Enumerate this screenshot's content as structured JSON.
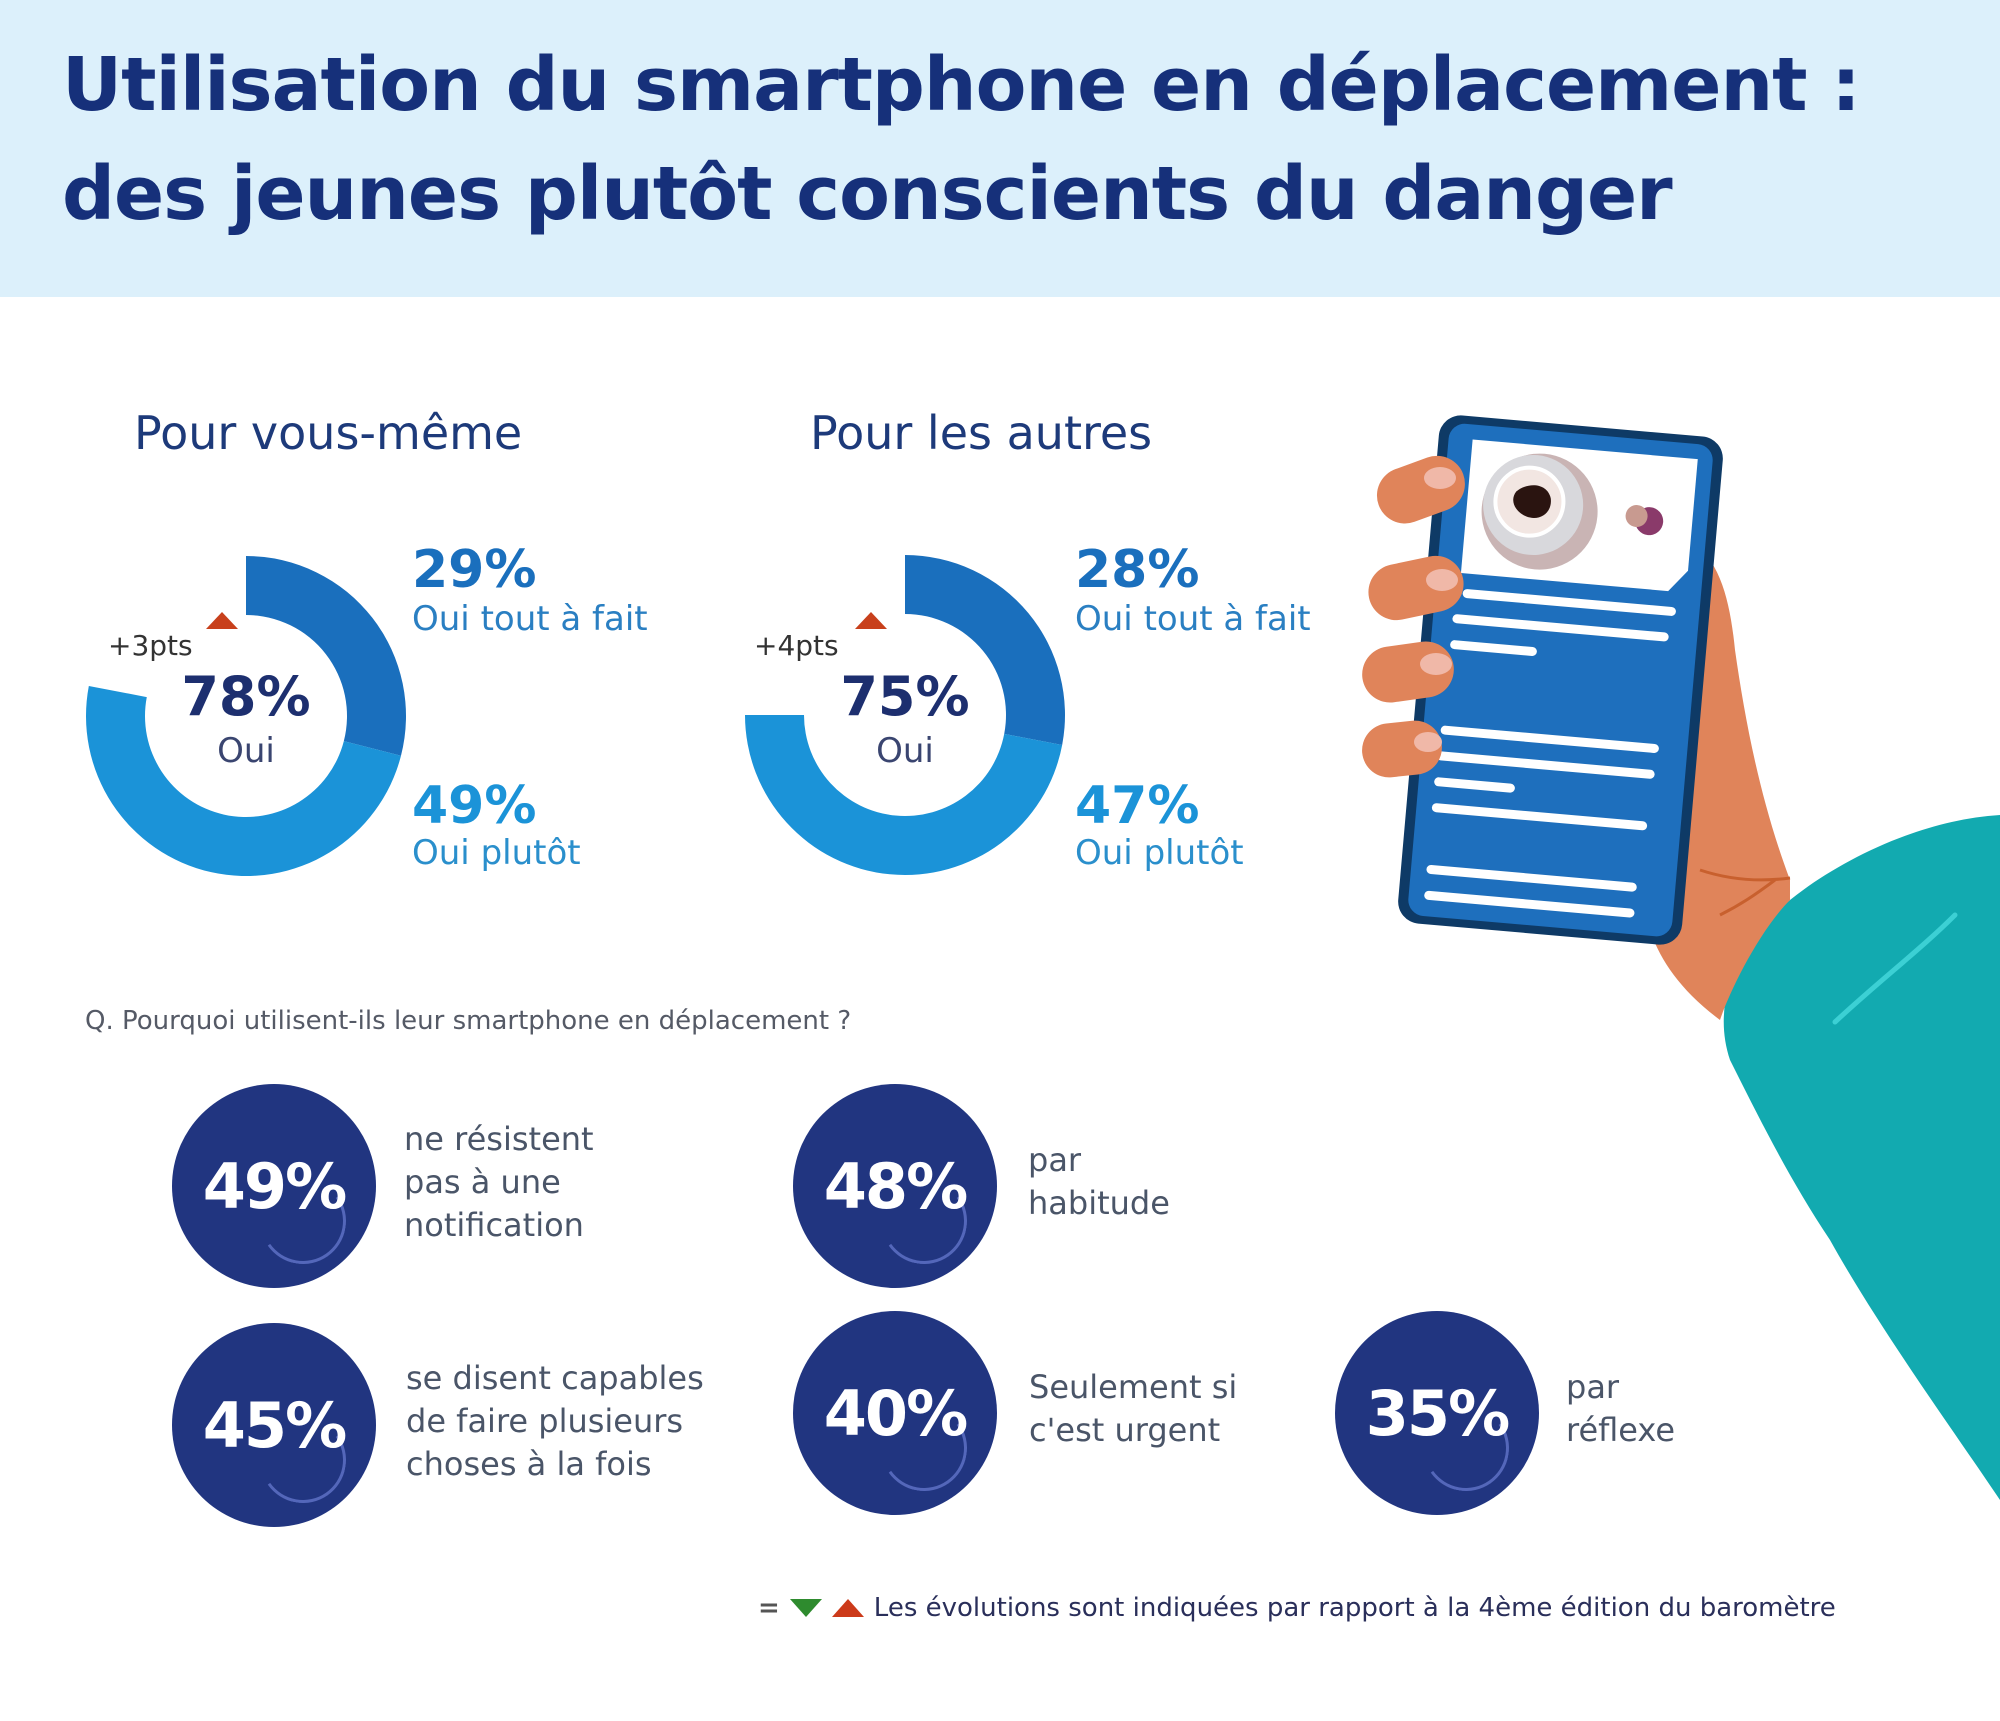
{
  "header": {
    "title_line1": "Utilisation du smartphone en déplacement :",
    "title_line2": "des jeunes plutôt conscients du danger"
  },
  "colors": {
    "header_bg": "#dcf0fb",
    "title": "#16307a",
    "dark_segment": "#1a6fbd",
    "light_segment": "#1b93d8",
    "navy_circle": "#213580",
    "up_arrow": "#cc3a1a",
    "down_arrow": "#2e8b2e",
    "sleeve": "#12aab0",
    "skin": "#e0845a",
    "phone": "#1e6fbd"
  },
  "chart_data": [
    {
      "type": "pie",
      "title": "Pour vous-même",
      "total_label": "Oui",
      "total_value": 78,
      "total_display": "78%",
      "delta": "+3pts",
      "delta_direction": "up",
      "series": [
        {
          "name": "Oui tout à fait",
          "value": 29,
          "display": "29%"
        },
        {
          "name": "Oui plutôt",
          "value": 49,
          "display": "49%"
        }
      ]
    },
    {
      "type": "pie",
      "title": "Pour les autres",
      "total_label": "Oui",
      "total_value": 75,
      "total_display": "75%",
      "delta": "+4pts",
      "delta_direction": "up",
      "series": [
        {
          "name": "Oui tout à fait",
          "value": 28,
          "display": "28%"
        },
        {
          "name": "Oui plutôt",
          "value": 47,
          "display": "47%"
        }
      ]
    },
    {
      "type": "table",
      "title": "Q. Pourquoi utilisent-ils leur smartphone en déplacement ?",
      "rows": [
        {
          "value": 49,
          "display": "49%",
          "label_lines": [
            "ne résistent",
            "pas à une",
            "notification"
          ]
        },
        {
          "value": 48,
          "display": "48%",
          "label_lines": [
            "par",
            "habitude"
          ]
        },
        {
          "value": 45,
          "display": "45%",
          "label_lines": [
            "se disent capables",
            "de faire plusieurs",
            "choses à la fois"
          ]
        },
        {
          "value": 40,
          "display": "40%",
          "label_lines": [
            "Seulement si",
            "c'est urgent"
          ]
        },
        {
          "value": 35,
          "display": "35%",
          "label_lines": [
            "par",
            "réflexe"
          ]
        }
      ]
    }
  ],
  "footer": {
    "equal_symbol": "=",
    "text": "Les évolutions sont indiquées par rapport à la 4ème édition du baromètre"
  },
  "illustration": {
    "icon": "hand-holding-smartphone-illustration"
  }
}
